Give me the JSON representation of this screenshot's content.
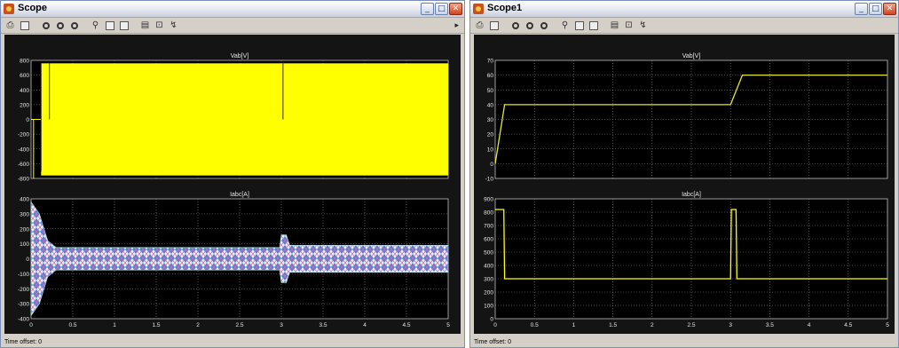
{
  "windows": [
    {
      "id": "win1",
      "title": "Scope",
      "time_offset_label": "Time offset:",
      "time_offset_value": "0",
      "chart_data": [
        {
          "type": "line",
          "title": "Vab[V]",
          "xlim": [
            0,
            5
          ],
          "ylim": [
            -800,
            800
          ],
          "yticks": [
            -800,
            -600,
            -400,
            -200,
            0,
            200,
            400,
            600,
            800
          ],
          "xticks": [
            "0",
            "0.5",
            "1",
            "1.5",
            "2",
            "2.5",
            "3",
            "3.5",
            "4",
            "4.5",
            "5"
          ],
          "grid": true,
          "band": {
            "color": "#ffff00",
            "from_x": 0.12,
            "to_x": 5,
            "low": -760,
            "high": 760
          },
          "spikes_x": [
            0.12,
            0.22,
            3.02
          ]
        },
        {
          "type": "line",
          "title": "Iabc[A]",
          "xlim": [
            0,
            5
          ],
          "ylim": [
            -400,
            400
          ],
          "yticks": [
            -400,
            -300,
            -200,
            -100,
            0,
            100,
            200,
            300,
            400
          ],
          "xticks": [
            "0",
            "0.5",
            "1",
            "1.5",
            "2",
            "2.5",
            "3",
            "3.5",
            "4",
            "4.5",
            "5"
          ],
          "grid": true,
          "envelope": {
            "x": [
              0,
              0.1,
              0.2,
              0.3,
              2.98,
              3.0,
              3.06,
              3.1,
              5
            ],
            "amp": [
              380,
              300,
              120,
              75,
              75,
              160,
              160,
              90,
              90
            ]
          }
        }
      ]
    },
    {
      "id": "win2",
      "title": "Scope1",
      "time_offset_label": "Time offset:",
      "time_offset_value": "0",
      "chart_data": [
        {
          "type": "line",
          "title": "Vab[V]",
          "xlim": [
            0,
            5
          ],
          "ylim": [
            -10,
            70
          ],
          "yticks": [
            -10,
            0,
            10,
            20,
            30,
            40,
            50,
            60,
            70
          ],
          "xticks": [
            "0",
            "0.5",
            "1",
            "1.5",
            "2",
            "2.5",
            "3",
            "3.5",
            "4",
            "4.5",
            "5"
          ],
          "grid": true,
          "color": "#e6e62a",
          "x": [
            0,
            0.12,
            3.0,
            3.15,
            5
          ],
          "y": [
            0,
            40,
            40,
            60,
            60
          ]
        },
        {
          "type": "line",
          "title": "Iabc[A]",
          "xlim": [
            0,
            5
          ],
          "ylim": [
            0,
            900
          ],
          "yticks": [
            0,
            100,
            200,
            300,
            400,
            500,
            600,
            700,
            800,
            900
          ],
          "xticks": [
            "0",
            "0.5",
            "1",
            "1.5",
            "2",
            "2.5",
            "3",
            "3.5",
            "4",
            "4.5",
            "5"
          ],
          "grid": true,
          "color": "#ffff00",
          "x": [
            0,
            0.11,
            0.12,
            3.0,
            3.01,
            3.07,
            3.08,
            5
          ],
          "y": [
            820,
            820,
            300,
            300,
            820,
            820,
            300,
            300
          ]
        }
      ]
    }
  ]
}
